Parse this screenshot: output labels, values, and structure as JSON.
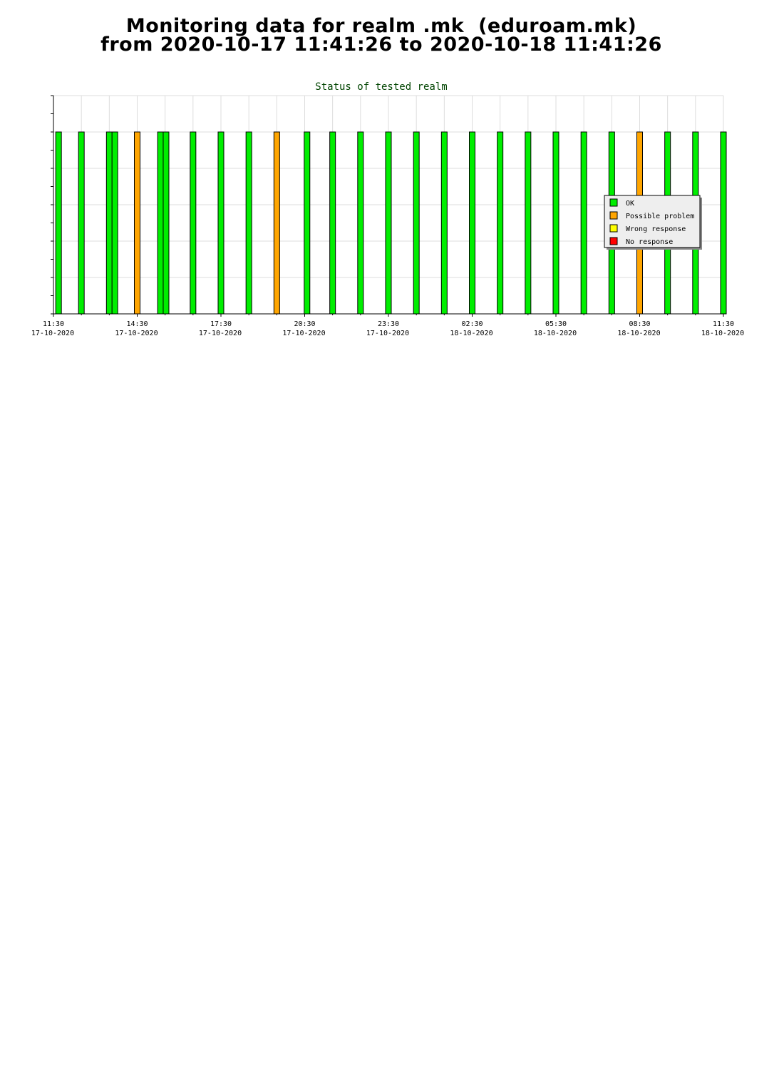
{
  "page": {
    "title_line1": "Monitoring data for realm .mk  (eduroam.mk)",
    "title_line2": "from 2020-10-17 11:41:26 to 2020-10-18 11:41:26"
  },
  "chart_data": {
    "type": "bar",
    "title": "Status of tested realm",
    "xlabel": "",
    "ylabel": "",
    "grid": true,
    "legend_position": "right",
    "x_range": [
      "2020-10-17 11:30",
      "2020-10-18 11:30"
    ],
    "y_range": [
      0,
      1.2
    ],
    "y_value_shown": 1,
    "x_ticks": [
      {
        "time": "11:30",
        "date": "17-10-2020"
      },
      {
        "time": "14:30",
        "date": "17-10-2020"
      },
      {
        "time": "17:30",
        "date": "17-10-2020"
      },
      {
        "time": "20:30",
        "date": "17-10-2020"
      },
      {
        "time": "23:30",
        "date": "17-10-2020"
      },
      {
        "time": "02:30",
        "date": "18-10-2020"
      },
      {
        "time": "05:30",
        "date": "18-10-2020"
      },
      {
        "time": "08:30",
        "date": "18-10-2020"
      },
      {
        "time": "11:30",
        "date": "18-10-2020"
      }
    ],
    "legend": [
      {
        "label": "OK",
        "color": "#00ee00"
      },
      {
        "label": "Possible problem",
        "color": "#ffa500"
      },
      {
        "label": "Wrong response",
        "color": "#ffff00"
      },
      {
        "label": "No response",
        "color": "#ff0000"
      }
    ],
    "series": [
      {
        "name": "OK",
        "color": "#00ee00",
        "points": [
          {
            "time": "2020-10-17 11:41",
            "value": 1
          },
          {
            "time": "2020-10-17 12:30",
            "value": 1
          },
          {
            "time": "2020-10-17 13:30",
            "value": 1
          },
          {
            "time": "2020-10-17 13:42",
            "value": 1
          },
          {
            "time": "2020-10-17 15:20",
            "value": 1
          },
          {
            "time": "2020-10-17 15:32",
            "value": 1
          },
          {
            "time": "2020-10-17 16:30",
            "value": 1
          },
          {
            "time": "2020-10-17 17:30",
            "value": 1
          },
          {
            "time": "2020-10-17 18:30",
            "value": 1
          },
          {
            "time": "2020-10-17 20:35",
            "value": 1
          },
          {
            "time": "2020-10-17 21:30",
            "value": 1
          },
          {
            "time": "2020-10-17 22:30",
            "value": 1
          },
          {
            "time": "2020-10-17 23:30",
            "value": 1
          },
          {
            "time": "2020-10-18 00:30",
            "value": 1
          },
          {
            "time": "2020-10-18 01:30",
            "value": 1
          },
          {
            "time": "2020-10-18 02:30",
            "value": 1
          },
          {
            "time": "2020-10-18 03:30",
            "value": 1
          },
          {
            "time": "2020-10-18 04:30",
            "value": 1
          },
          {
            "time": "2020-10-18 05:30",
            "value": 1
          },
          {
            "time": "2020-10-18 06:30",
            "value": 1
          },
          {
            "time": "2020-10-18 07:30",
            "value": 1
          },
          {
            "time": "2020-10-18 09:30",
            "value": 1
          },
          {
            "time": "2020-10-18 10:30",
            "value": 1
          },
          {
            "time": "2020-10-18 11:30",
            "value": 1
          }
        ]
      },
      {
        "name": "Possible problem",
        "color": "#ffa500",
        "points": [
          {
            "time": "2020-10-17 14:30",
            "value": 1
          },
          {
            "time": "2020-10-17 19:30",
            "value": 1
          },
          {
            "time": "2020-10-18 08:30",
            "value": 1
          }
        ]
      },
      {
        "name": "Wrong response",
        "color": "#ffff00",
        "points": []
      },
      {
        "name": "No response",
        "color": "#ff0000",
        "points": []
      }
    ]
  }
}
